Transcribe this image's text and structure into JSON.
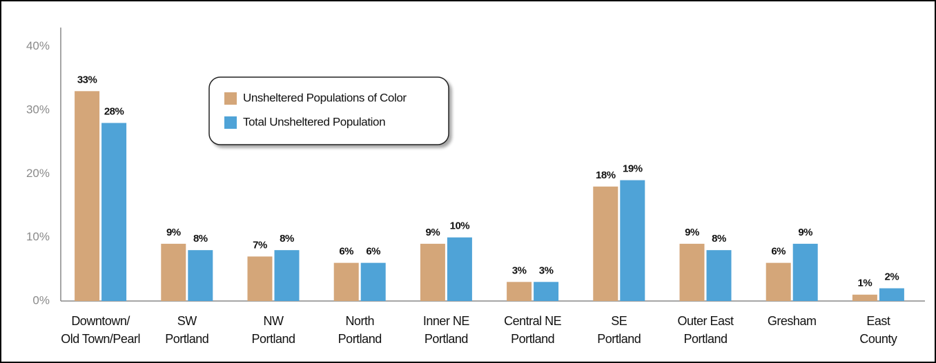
{
  "chart_data": {
    "type": "bar",
    "categories": [
      [
        "Downtown/",
        "Old Town/Pearl"
      ],
      [
        "SW",
        "Portland"
      ],
      [
        "NW",
        "Portland"
      ],
      [
        "North",
        "Portland"
      ],
      [
        "Inner NE",
        "Portland"
      ],
      [
        "Central NE",
        "Portland"
      ],
      [
        "SE",
        "Portland"
      ],
      [
        "Outer East",
        "Portland"
      ],
      [
        "Gresham"
      ],
      [
        "East",
        "County"
      ]
    ],
    "series": [
      {
        "name": "Unsheltered Populations of Color",
        "color": "#d4a679",
        "values": [
          33,
          9,
          7,
          6,
          9,
          3,
          18,
          9,
          6,
          1
        ],
        "value_labels": [
          "33%",
          "9%",
          "7%",
          "6%",
          "9%",
          "3%",
          "18%",
          "9%",
          "6%",
          "1%"
        ]
      },
      {
        "name": "Total Unsheltered Population",
        "color": "#4fa3d7",
        "values": [
          28,
          8,
          8,
          6,
          10,
          3,
          19,
          8,
          9,
          2
        ],
        "value_labels": [
          "28%",
          "8%",
          "8%",
          "6%",
          "10%",
          "3%",
          "19%",
          "8%",
          "9%",
          "2%"
        ]
      }
    ],
    "ylim": [
      0,
      43
    ],
    "yticks": [
      {
        "value": 0,
        "label": "0%"
      },
      {
        "value": 10,
        "label": "10%"
      },
      {
        "value": 20,
        "label": "20%"
      },
      {
        "value": 30,
        "label": "30%"
      },
      {
        "value": 40,
        "label": "40%"
      }
    ],
    "grid": false
  }
}
